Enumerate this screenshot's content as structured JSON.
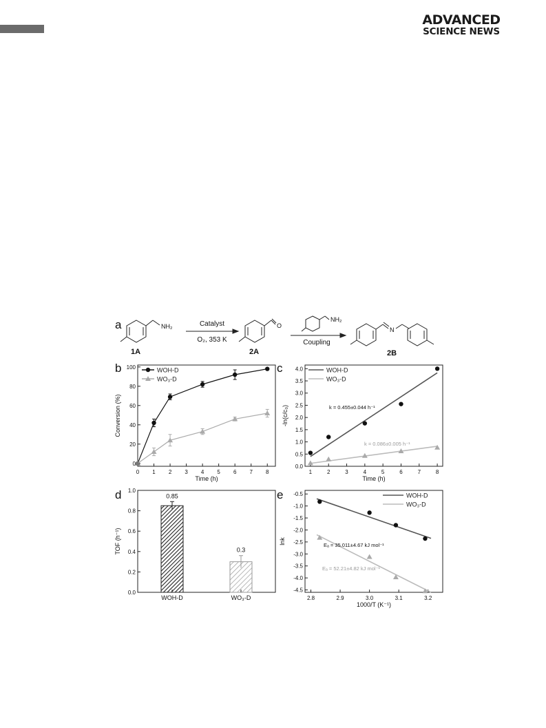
{
  "header": {
    "brand_line1": "ADVANCED",
    "brand_line2": "SCIENCE NEWS",
    "accent_bar_color": "#6b6b6b"
  },
  "scheme": {
    "panel_label": "a",
    "reactant_label": "1A",
    "reactant_group": "NH₂",
    "arrow1_top": "Catalyst",
    "arrow1_bottom": "O₂, 353 K",
    "intermediate_label": "2A",
    "intermediate_group": "O",
    "coupling_reagent_group": "NH₂",
    "arrow2_bottom": "Coupling",
    "product_label": "2B",
    "product_atom": "N"
  },
  "chart_data": [
    {
      "panel": "b",
      "type": "line",
      "xlabel": "Time (h)",
      "ylabel": "Conversion (%)",
      "xlim": [
        0,
        8.5
      ],
      "ylim": [
        -3,
        102
      ],
      "xticks": [
        0,
        1,
        2,
        3,
        4,
        5,
        6,
        7,
        8
      ],
      "yticks": [
        0,
        20,
        40,
        60,
        80,
        100
      ],
      "legend": "top-left",
      "series": [
        {
          "name": "WOH-D",
          "color": "#111111",
          "marker": "circle",
          "x": [
            0,
            1,
            2,
            4,
            6,
            8
          ],
          "values": [
            0,
            42,
            69,
            82,
            92,
            98
          ],
          "err": [
            0,
            4,
            3,
            3,
            5,
            1
          ]
        },
        {
          "name": "WO₃-D",
          "color": "#aaaaaa",
          "marker": "triangle",
          "x": [
            0,
            1,
            2,
            4,
            6,
            8
          ],
          "values": [
            0,
            12,
            24,
            33,
            46,
            52
          ],
          "err": [
            0,
            4,
            6,
            3,
            2,
            4
          ]
        }
      ]
    },
    {
      "panel": "c",
      "type": "scatter",
      "xlabel": "Time (h)",
      "ylabel": "-ln(c/c₀)",
      "xlim": [
        0.7,
        8.3
      ],
      "ylim": [
        0,
        4.15
      ],
      "xticks": [
        1,
        2,
        3,
        4,
        5,
        6,
        7,
        8
      ],
      "yticks": [
        0.0,
        0.5,
        1.0,
        1.5,
        2.0,
        2.5,
        3.0,
        3.5,
        4.0
      ],
      "legend": "top-left",
      "annotations": [
        "k = 0.455±0.044 h⁻¹",
        "k = 0.086±0.005 h⁻¹"
      ],
      "series": [
        {
          "name": "WOH-D",
          "color": "#111111",
          "line_color": "#555555",
          "marker": "circle",
          "x": [
            1,
            2,
            4,
            6,
            8
          ],
          "values": [
            0.55,
            1.2,
            1.76,
            2.55,
            4.0
          ],
          "fit": [
            [
              1,
              0.4
            ],
            [
              8,
              3.83
            ]
          ]
        },
        {
          "name": "WO₃-D",
          "color": "#aaaaaa",
          "line_color": "#bbbbbb",
          "marker": "triangle",
          "x": [
            1,
            2,
            4,
            6,
            8
          ],
          "values": [
            0.13,
            0.29,
            0.43,
            0.62,
            0.77
          ],
          "fit": [
            [
              1,
              0.12
            ],
            [
              8,
              0.82
            ]
          ]
        }
      ]
    },
    {
      "panel": "d",
      "type": "bar",
      "categories": [
        "WOH-D",
        "WO₃-D"
      ],
      "values": [
        0.85,
        0.3
      ],
      "err": [
        0.04,
        0.06
      ],
      "value_labels": [
        "0.85",
        "0.3"
      ],
      "ylabel": "TOF (h⁻¹)",
      "ylim": [
        0,
        1.0
      ],
      "yticks": [
        0.0,
        0.2,
        0.4,
        0.6,
        0.8,
        1.0
      ],
      "colors": [
        "#222222",
        "#999999"
      ],
      "fill": "hatched"
    },
    {
      "panel": "e",
      "type": "scatter",
      "xlabel": "1000/T (K⁻¹)",
      "ylabel": "lnk",
      "xlim": [
        2.78,
        3.25
      ],
      "ylim": [
        -4.6,
        -0.35
      ],
      "xticks": [
        2.8,
        2.9,
        3.0,
        3.1,
        3.2
      ],
      "yticks": [
        -0.5,
        -1.0,
        -1.5,
        -2.0,
        -2.5,
        -3.0,
        -3.5,
        -4.0,
        -4.5
      ],
      "legend": "top-right",
      "annotations": [
        "Eₐ = 35.011±4.67 kJ mol⁻¹",
        "Eₐ = 52.21±4.82 kJ mol⁻¹"
      ],
      "series": [
        {
          "name": "WOH-D",
          "color": "#111111",
          "line_color": "#555555",
          "marker": "circle",
          "x": [
            2.83,
            3.0,
            3.09,
            3.19
          ],
          "values": [
            -0.82,
            -1.28,
            -1.8,
            -2.36
          ],
          "fit": [
            [
              2.82,
              -0.7
            ],
            [
              3.21,
              -2.35
            ]
          ]
        },
        {
          "name": "WO₃-D",
          "color": "#aaaaaa",
          "line_color": "#bbbbbb",
          "marker": "triangle",
          "x": [
            2.83,
            3.0,
            3.09,
            3.19
          ],
          "values": [
            -2.32,
            -3.12,
            -3.97,
            -4.55
          ],
          "fit": [
            [
              2.82,
              -2.2
            ],
            [
              3.21,
              -4.6
            ]
          ]
        }
      ]
    }
  ]
}
